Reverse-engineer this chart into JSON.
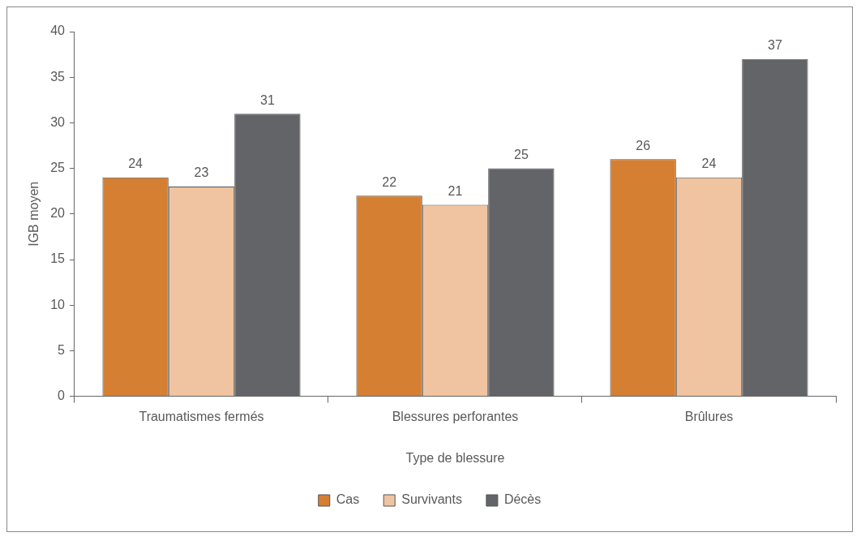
{
  "chart_data": {
    "type": "bar",
    "xlabel": "Type de blessure",
    "ylabel": "IGB moyen",
    "categories": [
      "Traumatismes fermés",
      "Blessures perforantes",
      "Brûlures"
    ],
    "series": [
      {
        "name": "Cas",
        "color": "#d57f33",
        "values": [
          24,
          22,
          26
        ]
      },
      {
        "name": "Survivants",
        "color": "#f0c4a0",
        "values": [
          23,
          21,
          24
        ]
      },
      {
        "name": "Décès",
        "color": "#636467",
        "values": [
          31,
          25,
          37
        ]
      }
    ],
    "ylim": [
      0,
      40
    ],
    "yticks": [
      0,
      5,
      10,
      15,
      20,
      25,
      30,
      35,
      40
    ],
    "grid": false,
    "legend": "bottom",
    "data_labels": true
  }
}
